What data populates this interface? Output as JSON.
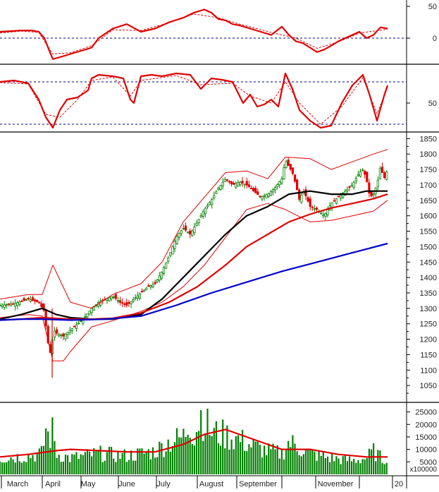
{
  "chart_data": [
    {
      "panel": "momentum",
      "type": "line",
      "ylim": [
        -40,
        60
      ],
      "ticks": [
        50,
        0
      ],
      "reference_lines": [
        0
      ],
      "series": [
        {
          "role": "main",
          "color": "#e00000",
          "x": [
            0,
            15,
            30,
            45,
            55,
            63,
            70,
            75,
            85,
            100,
            115,
            130,
            140,
            160,
            180,
            200,
            220,
            240,
            260,
            275,
            290,
            300,
            310,
            320,
            330,
            340,
            355,
            370,
            385,
            400,
            410,
            420,
            430,
            440,
            450,
            460,
            470,
            480,
            490,
            500,
            510,
            520,
            530,
            540,
            550
          ],
          "y": [
            10,
            11,
            12,
            12,
            10,
            0,
            -20,
            -33,
            -30,
            -25,
            -20,
            -15,
            0,
            15,
            22,
            10,
            15,
            25,
            32,
            40,
            45,
            40,
            30,
            28,
            22,
            20,
            15,
            10,
            5,
            18,
            5,
            -5,
            -8,
            -15,
            -22,
            -18,
            -12,
            -5,
            0,
            5,
            10,
            0,
            5,
            17,
            15
          ]
        },
        {
          "role": "signal",
          "color": "#e00000",
          "x": [
            0,
            30,
            55,
            75,
            100,
            130,
            160,
            200,
            240,
            275,
            310,
            340,
            385,
            420,
            450,
            480,
            510,
            550
          ],
          "y": [
            8,
            11,
            9,
            -25,
            -23,
            -12,
            13,
            12,
            24,
            38,
            32,
            22,
            9,
            0,
            -16,
            -6,
            8,
            14
          ]
        }
      ]
    },
    {
      "panel": "oscillator",
      "type": "line",
      "ylim": [
        10,
        100
      ],
      "ticks": [
        50
      ],
      "reference_lines": [
        80,
        20
      ],
      "series": [
        {
          "role": "main",
          "color": "#e00000",
          "x": [
            0,
            20,
            40,
            55,
            65,
            75,
            85,
            95,
            110,
            125,
            130,
            140,
            160,
            175,
            185,
            190,
            200,
            215,
            230,
            250,
            270,
            285,
            300,
            315,
            330,
            345,
            355,
            365,
            375,
            385,
            395,
            405,
            415,
            425,
            440,
            455,
            470,
            485,
            500,
            515,
            525,
            535,
            545,
            550
          ],
          "y": [
            80,
            82,
            78,
            55,
            30,
            15,
            40,
            55,
            58,
            68,
            85,
            90,
            88,
            85,
            55,
            50,
            88,
            90,
            88,
            92,
            90,
            70,
            85,
            83,
            80,
            50,
            62,
            45,
            48,
            55,
            45,
            92,
            70,
            40,
            25,
            15,
            18,
            50,
            75,
            90,
            60,
            25,
            60,
            75
          ]
        },
        {
          "role": "signal",
          "color": "#e00000",
          "x": [
            0,
            40,
            65,
            85,
            110,
            130,
            160,
            185,
            200,
            250,
            285,
            330,
            355,
            385,
            405,
            425,
            455,
            485,
            515,
            535,
            550
          ],
          "y": [
            79,
            77,
            34,
            30,
            55,
            82,
            87,
            60,
            82,
            89,
            76,
            78,
            60,
            50,
            80,
            50,
            20,
            45,
            86,
            35,
            72
          ]
        }
      ]
    },
    {
      "panel": "price",
      "type": "candlestick",
      "ylim": [
        1000,
        1860
      ],
      "ticks": [
        1850,
        1800,
        1750,
        1700,
        1650,
        1600,
        1550,
        1500,
        1450,
        1400,
        1350,
        1300,
        1250,
        1200,
        1150,
        1100,
        1050
      ],
      "price_path": {
        "x": [
          0,
          20,
          40,
          55,
          63,
          67,
          72,
          76,
          80,
          90,
          100,
          110,
          120,
          130,
          140,
          150,
          160,
          170,
          180,
          190,
          200,
          210,
          220,
          230,
          240,
          250,
          260,
          270,
          280,
          290,
          300,
          310,
          320,
          330,
          340,
          350,
          360,
          370,
          380,
          390,
          400,
          405,
          410,
          415,
          420,
          425,
          430,
          435,
          440,
          450,
          460,
          470,
          480,
          490,
          500,
          510,
          515,
          520,
          525,
          530,
          535,
          540,
          545,
          550
        ],
        "y": [
          1310,
          1315,
          1330,
          1320,
          1290,
          1200,
          1150,
          1230,
          1220,
          1210,
          1230,
          1250,
          1270,
          1300,
          1320,
          1330,
          1340,
          1320,
          1310,
          1330,
          1350,
          1370,
          1380,
          1420,
          1470,
          1530,
          1560,
          1540,
          1580,
          1620,
          1650,
          1690,
          1720,
          1700,
          1710,
          1700,
          1680,
          1660,
          1670,
          1690,
          1720,
          1780,
          1760,
          1740,
          1700,
          1650,
          1680,
          1660,
          1630,
          1620,
          1600,
          1640,
          1660,
          1680,
          1700,
          1740,
          1750,
          1720,
          1660,
          1670,
          1700,
          1760,
          1720,
          1750
        ]
      },
      "overlays": [
        {
          "name": "bollinger-upper",
          "color": "#e00000",
          "x": [
            0,
            40,
            60,
            75,
            100,
            130,
            160,
            200,
            230,
            260,
            290,
            320,
            350,
            380,
            405,
            440,
            470,
            500,
            530,
            550
          ],
          "y": [
            1330,
            1345,
            1345,
            1440,
            1320,
            1300,
            1345,
            1380,
            1450,
            1580,
            1660,
            1740,
            1745,
            1720,
            1790,
            1785,
            1750,
            1775,
            1800,
            1815
          ]
        },
        {
          "name": "bollinger-lower",
          "color": "#e00000",
          "x": [
            0,
            40,
            60,
            75,
            90,
            100,
            130,
            160,
            200,
            230,
            260,
            290,
            320,
            350,
            380,
            405,
            440,
            470,
            500,
            530,
            550
          ],
          "y": [
            1270,
            1280,
            1275,
            1130,
            1130,
            1160,
            1240,
            1260,
            1290,
            1320,
            1370,
            1440,
            1530,
            1620,
            1640,
            1620,
            1580,
            1585,
            1600,
            1615,
            1650
          ]
        },
        {
          "name": "moving-average-short",
          "color": "#000000",
          "x": [
            0,
            30,
            60,
            80,
            100,
            130,
            160,
            200,
            230,
            260,
            290,
            320,
            350,
            380,
            410,
            440,
            470,
            500,
            520,
            550
          ],
          "y": [
            1265,
            1280,
            1300,
            1280,
            1270,
            1265,
            1265,
            1280,
            1330,
            1400,
            1470,
            1540,
            1600,
            1630,
            1670,
            1680,
            1670,
            1670,
            1680,
            1680
          ]
        },
        {
          "name": "moving-average-mid",
          "color": "#e00000",
          "x": [
            0,
            30,
            60,
            100,
            130,
            160,
            200,
            240,
            280,
            320,
            350,
            380,
            410,
            440,
            470,
            500,
            530,
            550
          ],
          "y": [
            1262,
            1265,
            1270,
            1265,
            1265,
            1268,
            1285,
            1320,
            1370,
            1440,
            1500,
            1540,
            1580,
            1605,
            1625,
            1640,
            1655,
            1670
          ]
        },
        {
          "name": "moving-average-long",
          "color": "#0000cc",
          "x": [
            0,
            30,
            60,
            100,
            150,
            200,
            250,
            300,
            350,
            400,
            450,
            500,
            550
          ],
          "y": [
            1262,
            1265,
            1265,
            1262,
            1265,
            1275,
            1310,
            1350,
            1385,
            1420,
            1450,
            1480,
            1510
          ]
        }
      ]
    },
    {
      "panel": "volume",
      "type": "bar",
      "ylim": [
        0,
        28000
      ],
      "ticks": [
        25000,
        20000,
        15000,
        10000,
        5000
      ],
      "multiplier_label": "x100000",
      "volume_path": {
        "x": [
          0,
          40,
          60,
          65,
          70,
          75,
          80,
          100,
          140,
          180,
          220,
          240,
          260,
          270,
          275,
          285,
          300,
          320,
          340,
          360,
          380,
          400,
          410,
          440,
          470,
          500,
          520,
          530,
          545,
          550
        ],
        "y": [
          7000,
          8000,
          9000,
          20000,
          15000,
          19000,
          9000,
          7000,
          9000,
          8000,
          10000,
          14000,
          16000,
          23000,
          16000,
          26000,
          18000,
          17000,
          15000,
          12000,
          10000,
          9000,
          14000,
          9000,
          7000,
          6000,
          7000,
          10000,
          6000,
          9000
        ]
      },
      "moving_average": {
        "color": "#e00000",
        "x": [
          0,
          40,
          80,
          100,
          140,
          180,
          220,
          260,
          290,
          320,
          360,
          400,
          440,
          480,
          520,
          550
        ],
        "y": [
          7000,
          8000,
          9500,
          10000,
          9500,
          9000,
          9000,
          12000,
          16000,
          18000,
          14000,
          10000,
          10000,
          8000,
          7000,
          7000
        ]
      },
      "bar_color": "#008000"
    }
  ],
  "x_axis": {
    "labels": [
      {
        "text": "March",
        "x": 25
      },
      {
        "text": "April",
        "x": 75
      },
      {
        "text": "May",
        "x": 125
      },
      {
        "text": "June",
        "x": 180
      },
      {
        "text": "July",
        "x": 232
      },
      {
        "text": "August",
        "x": 300
      },
      {
        "text": "September",
        "x": 366
      },
      {
        "text": "November",
        "x": 476
      },
      {
        "text": "20",
        "x": 566
      }
    ]
  },
  "colors": {
    "grid": "#555555",
    "reference": "#000088",
    "up_candle": "#008000",
    "down_candle": "#e00000",
    "border": "#000000"
  }
}
